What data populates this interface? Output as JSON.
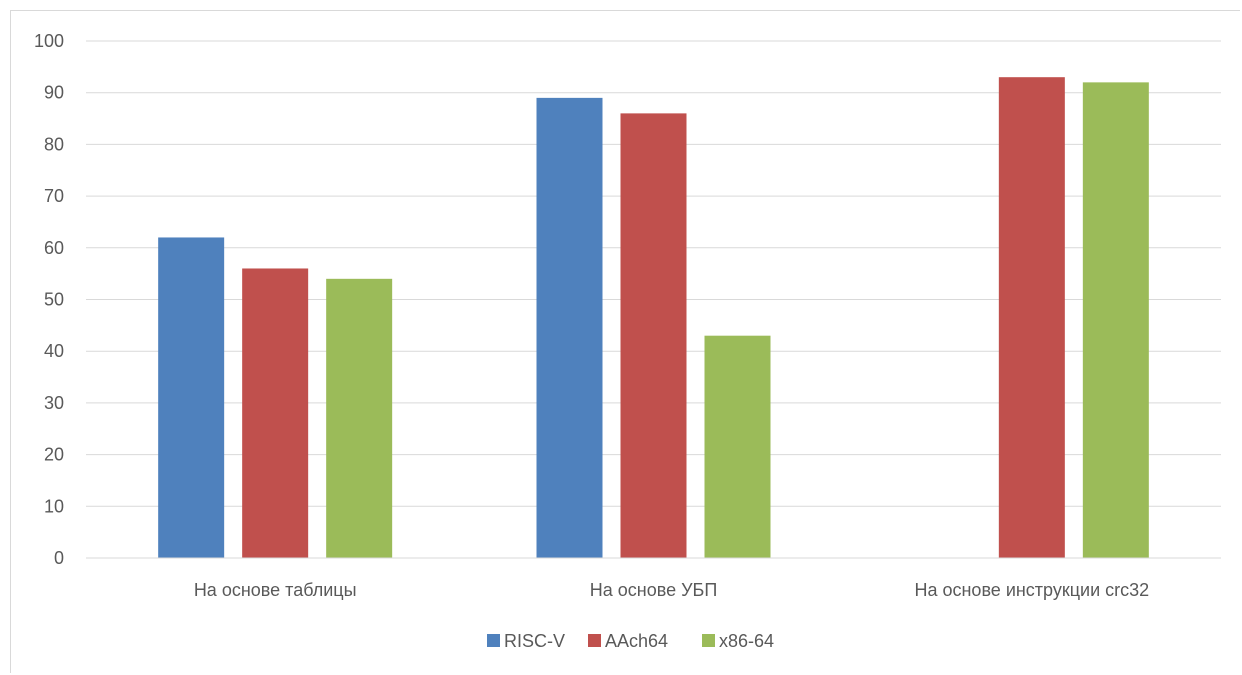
{
  "chart_data": {
    "type": "bar",
    "categories": [
      "На основе таблицы",
      "На основе УБП",
      "На основе инструкции crc32"
    ],
    "series": [
      {
        "name": "RISC-V",
        "color": "#4f81bd",
        "values": [
          62,
          89,
          null
        ]
      },
      {
        "name": "AAch64",
        "color": "#c0504d",
        "values": [
          56,
          86,
          93
        ]
      },
      {
        "name": "x86-64",
        "color": "#9bbb59",
        "values": [
          54,
          43,
          92
        ]
      }
    ],
    "title": "",
    "xlabel": "",
    "ylabel": "",
    "ylim": [
      0,
      100
    ],
    "yticks": [
      "0",
      "10",
      "20",
      "30",
      "40",
      "50",
      "60",
      "70",
      "80",
      "90",
      "100"
    ],
    "grid": true,
    "legend": "bottom"
  }
}
